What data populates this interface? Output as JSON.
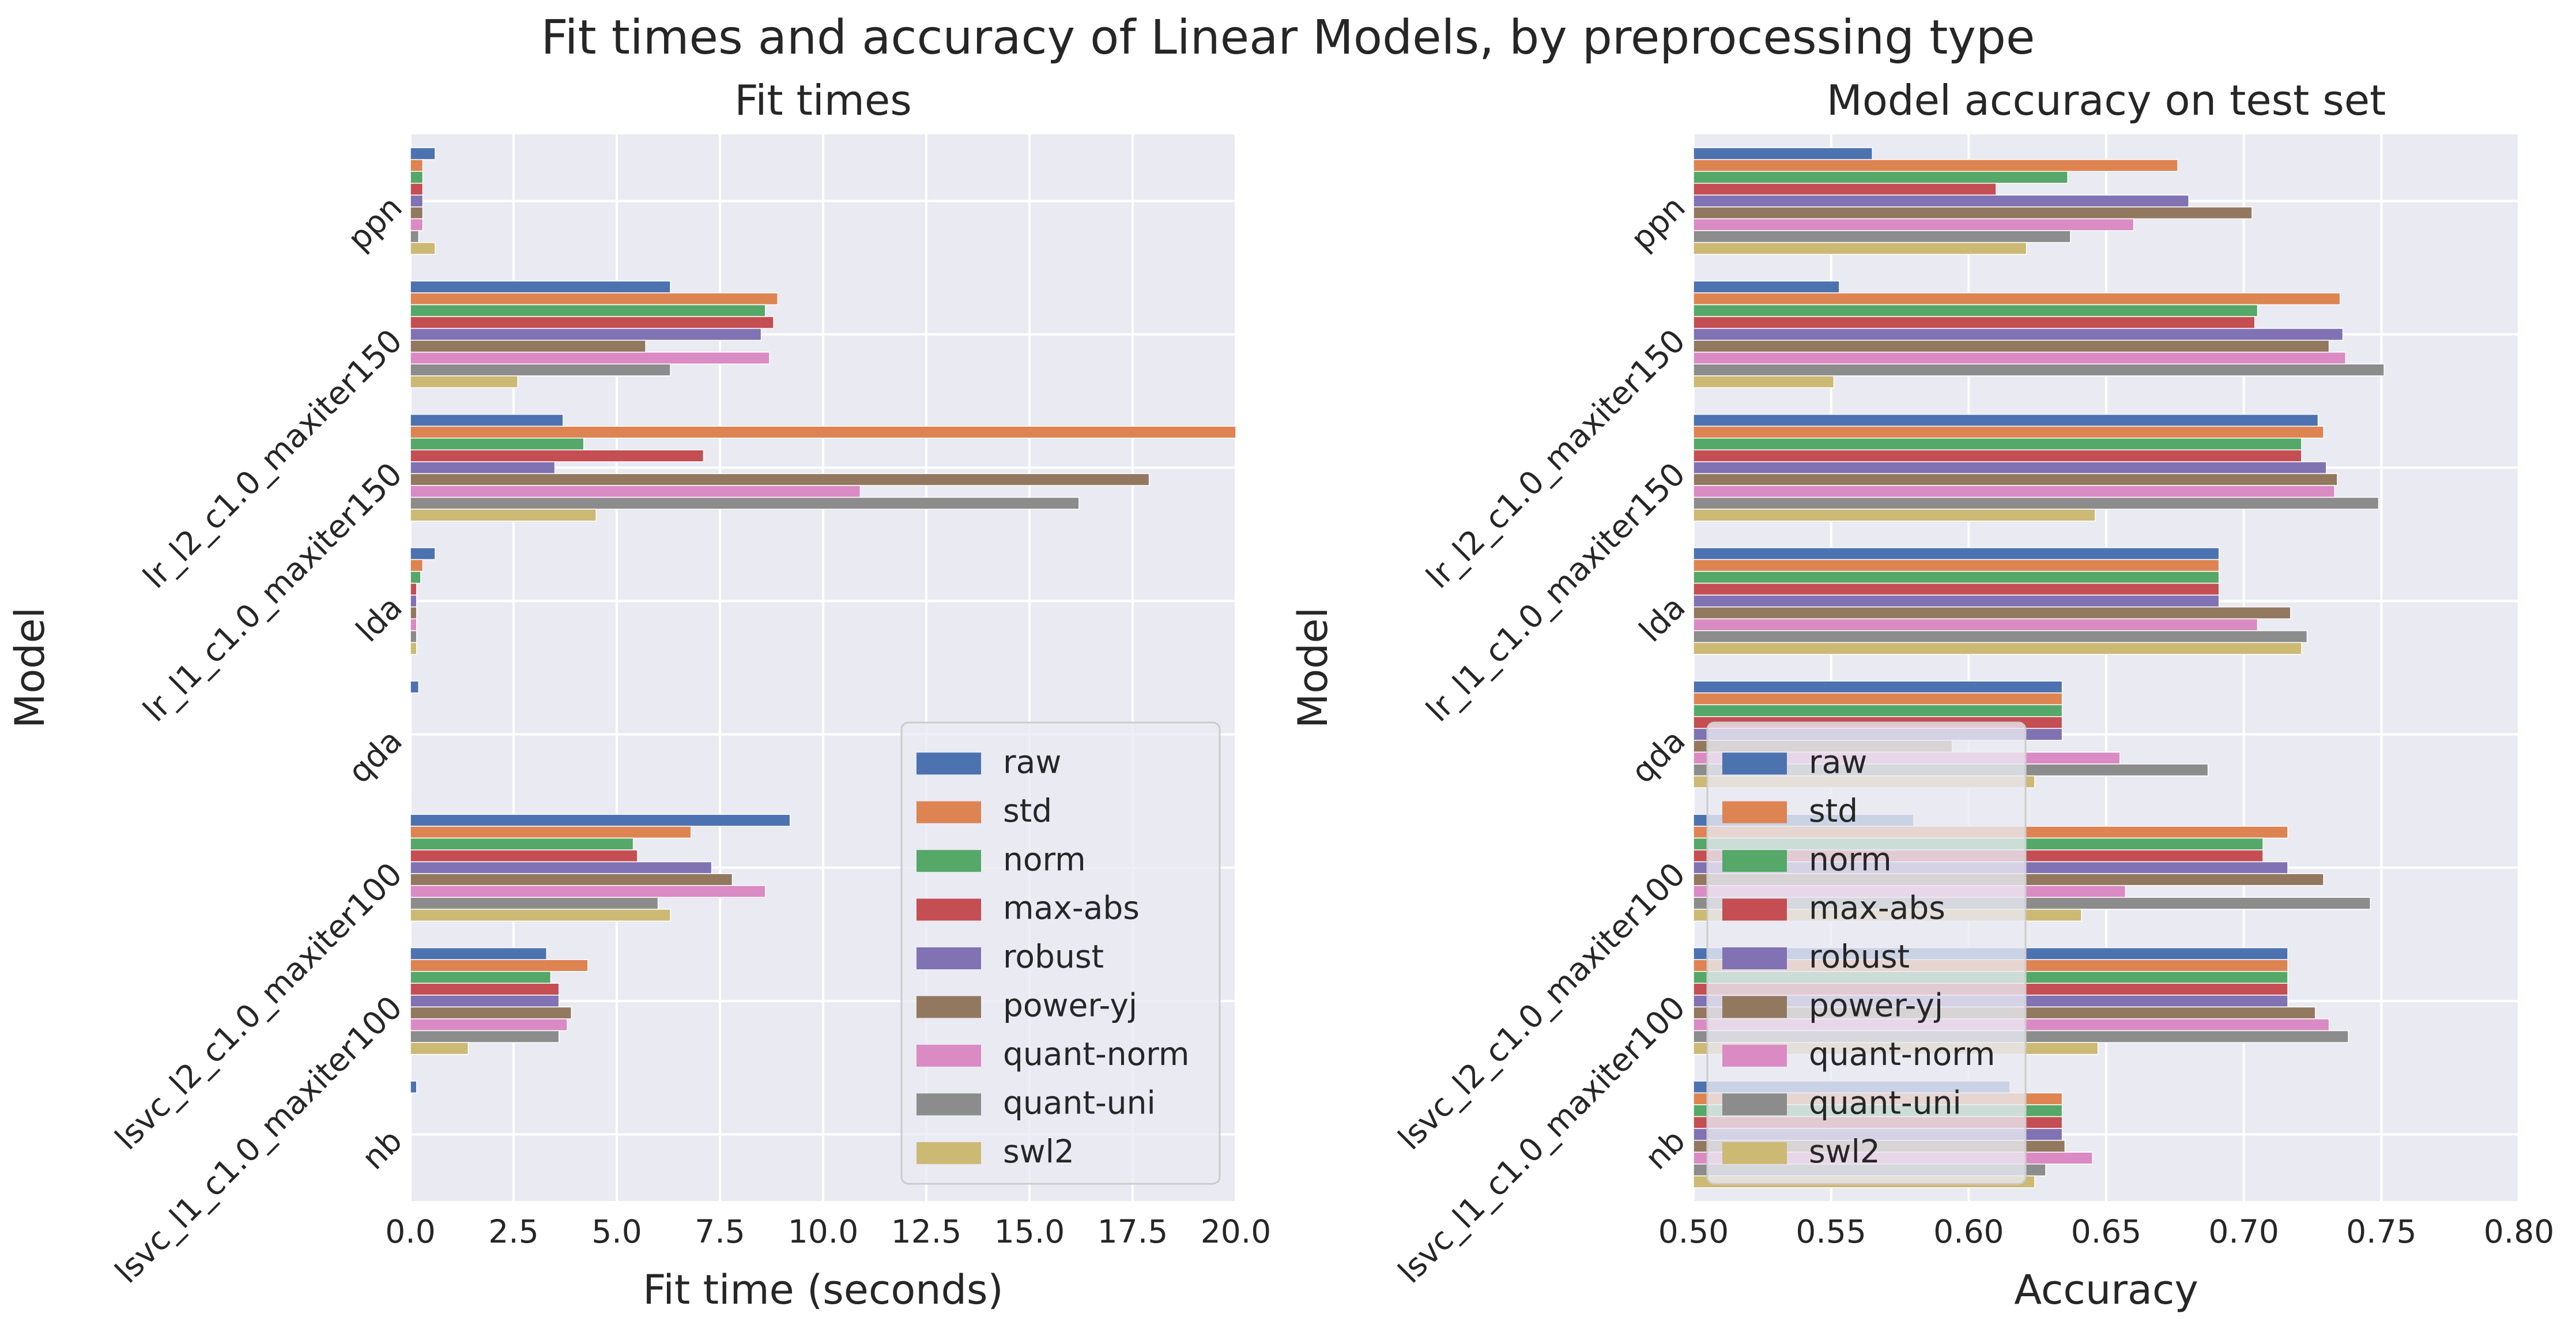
{
  "figure": {
    "title": "Fit times and accuracy of Linear Models, by preprocessing type"
  },
  "colors": {
    "raw": "#4c72b0",
    "std": "#dd8452",
    "norm": "#55a868",
    "max-abs": "#c44e52",
    "robust": "#8172b3",
    "power-yj": "#937860",
    "quant-norm": "#da8bc3",
    "quant-uni": "#8c8c8c",
    "swl2": "#ccb974"
  },
  "chart_data": [
    {
      "type": "bar",
      "orientation": "horizontal",
      "title": "Fit times",
      "xlabel": "Fit time (seconds)",
      "ylabel": "Model",
      "xlim": [
        0,
        20
      ],
      "xticks": [
        "0.0",
        "2.5",
        "5.0",
        "7.5",
        "10.0",
        "12.5",
        "15.0",
        "17.5",
        "20.0"
      ],
      "grid": true,
      "legend_position": "lower-right",
      "categories": [
        "ppn",
        "lr_l2_c1.0_maxiter150",
        "lr_l1_c1.0_maxiter150",
        "lda",
        "qda",
        "lsvc_l2_c1.0_maxiter100",
        "lsvc_l1_c1.0_maxiter100",
        "nb"
      ],
      "series": [
        {
          "name": "raw",
          "values": [
            0.6,
            6.3,
            3.7,
            0.6,
            0.2,
            9.2,
            3.3,
            0.15
          ]
        },
        {
          "name": "std",
          "values": [
            0.3,
            8.9,
            20.0,
            0.3,
            0.02,
            6.8,
            4.3,
            0.02
          ]
        },
        {
          "name": "norm",
          "values": [
            0.3,
            8.6,
            4.2,
            0.25,
            0.02,
            5.4,
            3.4,
            0.02
          ]
        },
        {
          "name": "max-abs",
          "values": [
            0.3,
            8.8,
            7.1,
            0.15,
            0.02,
            5.5,
            3.6,
            0.02
          ]
        },
        {
          "name": "robust",
          "values": [
            0.3,
            8.5,
            3.5,
            0.15,
            0.02,
            7.3,
            3.6,
            0.02
          ]
        },
        {
          "name": "power-yj",
          "values": [
            0.3,
            5.7,
            17.9,
            0.15,
            0.02,
            7.8,
            3.9,
            0.02
          ]
        },
        {
          "name": "quant-norm",
          "values": [
            0.3,
            8.7,
            10.9,
            0.15,
            0.02,
            8.6,
            3.8,
            0.02
          ]
        },
        {
          "name": "quant-uni",
          "values": [
            0.2,
            6.3,
            16.2,
            0.15,
            0.02,
            6.0,
            3.6,
            0.02
          ]
        },
        {
          "name": "swl2",
          "values": [
            0.6,
            2.6,
            4.5,
            0.15,
            0.02,
            6.3,
            1.4,
            0.02
          ]
        }
      ]
    },
    {
      "type": "bar",
      "orientation": "horizontal",
      "title": "Model accuracy on test set",
      "xlabel": "Accuracy",
      "ylabel": "Model",
      "xlim": [
        0.5,
        0.8
      ],
      "xticks": [
        "0.50",
        "0.55",
        "0.60",
        "0.65",
        "0.70",
        "0.75",
        "0.80"
      ],
      "grid": true,
      "legend_position": "lower-left",
      "categories": [
        "ppn",
        "lr_l2_c1.0_maxiter150",
        "lr_l1_c1.0_maxiter150",
        "lda",
        "qda",
        "lsvc_l2_c1.0_maxiter100",
        "lsvc_l1_c1.0_maxiter100",
        "nb"
      ],
      "series": [
        {
          "name": "raw",
          "values": [
            0.565,
            0.553,
            0.727,
            0.691,
            0.634,
            0.58,
            0.716,
            0.615
          ]
        },
        {
          "name": "std",
          "values": [
            0.676,
            0.735,
            0.729,
            0.691,
            0.634,
            0.716,
            0.716,
            0.634
          ]
        },
        {
          "name": "norm",
          "values": [
            0.636,
            0.705,
            0.721,
            0.691,
            0.634,
            0.707,
            0.716,
            0.634
          ]
        },
        {
          "name": "max-abs",
          "values": [
            0.61,
            0.704,
            0.721,
            0.691,
            0.634,
            0.707,
            0.716,
            0.634
          ]
        },
        {
          "name": "robust",
          "values": [
            0.68,
            0.736,
            0.73,
            0.691,
            0.634,
            0.716,
            0.716,
            0.634
          ]
        },
        {
          "name": "power-yj",
          "values": [
            0.703,
            0.731,
            0.734,
            0.717,
            0.594,
            0.729,
            0.726,
            0.635
          ]
        },
        {
          "name": "quant-norm",
          "values": [
            0.66,
            0.737,
            0.733,
            0.705,
            0.655,
            0.657,
            0.731,
            0.645
          ]
        },
        {
          "name": "quant-uni",
          "values": [
            0.637,
            0.751,
            0.749,
            0.723,
            0.687,
            0.746,
            0.738,
            0.628
          ]
        },
        {
          "name": "swl2",
          "values": [
            0.621,
            0.551,
            0.646,
            0.721,
            0.624,
            0.641,
            0.647,
            0.624
          ]
        }
      ]
    }
  ]
}
